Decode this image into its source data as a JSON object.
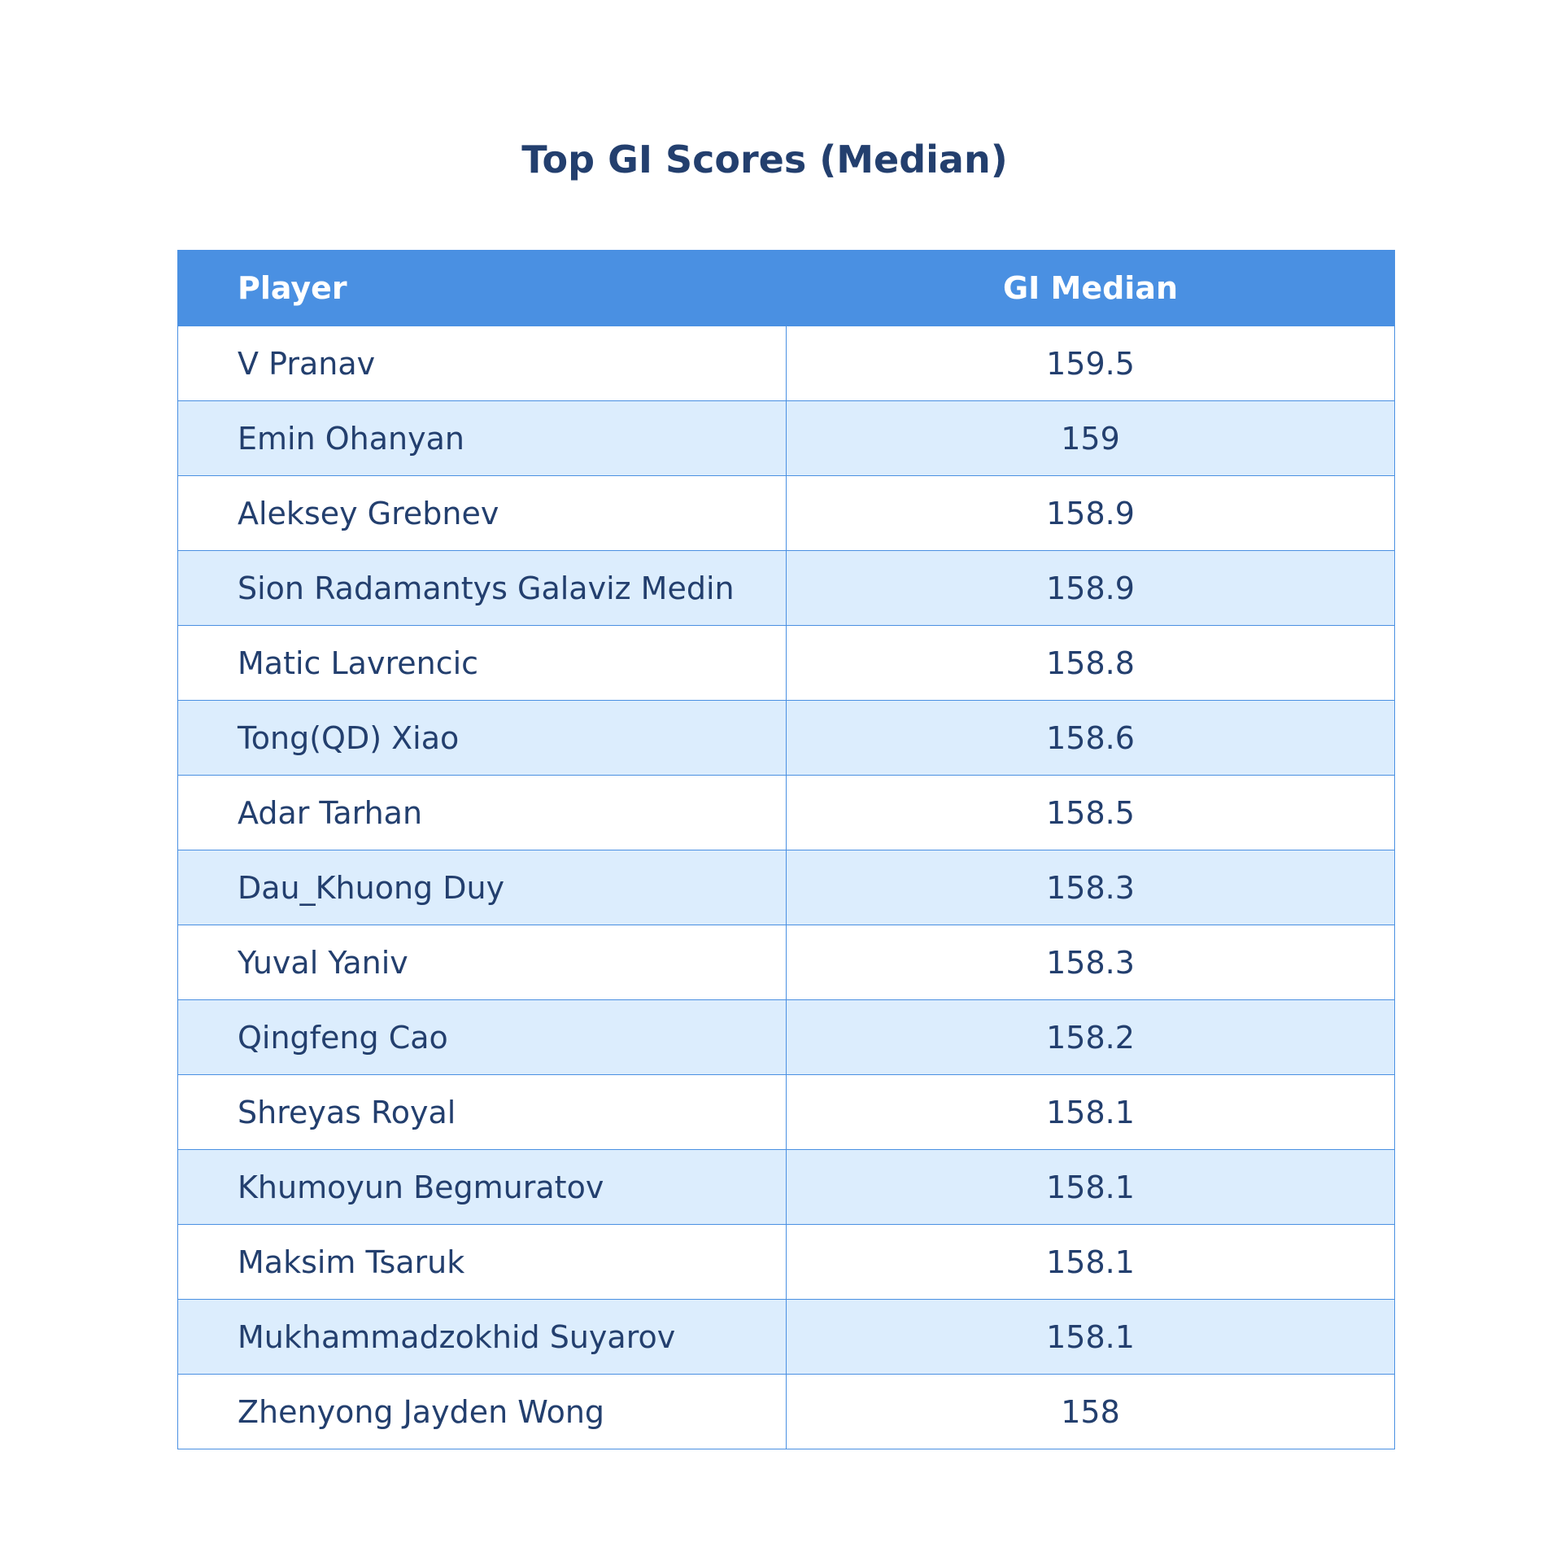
{
  "chart_data": {
    "type": "table",
    "title": "Top GI Scores (Median)",
    "columns": [
      "Player",
      "GI Median"
    ],
    "rows": [
      {
        "player": "V Pranav",
        "gi_median": "159.5"
      },
      {
        "player": "Emin Ohanyan",
        "gi_median": "159"
      },
      {
        "player": "Aleksey Grebnev",
        "gi_median": "158.9"
      },
      {
        "player": "Sion Radamantys Galaviz Medin",
        "gi_median": "158.9"
      },
      {
        "player": "Matic Lavrencic",
        "gi_median": "158.8"
      },
      {
        "player": "Tong(QD) Xiao",
        "gi_median": "158.6"
      },
      {
        "player": "Adar Tarhan",
        "gi_median": "158.5"
      },
      {
        "player": "Dau_Khuong Duy",
        "gi_median": "158.3"
      },
      {
        "player": "Yuval Yaniv",
        "gi_median": "158.3"
      },
      {
        "player": "Qingfeng Cao",
        "gi_median": "158.2"
      },
      {
        "player": "Shreyas Royal",
        "gi_median": "158.1"
      },
      {
        "player": "Khumoyun Begmuratov",
        "gi_median": "158.1"
      },
      {
        "player": "Maksim Tsaruk",
        "gi_median": "158.1"
      },
      {
        "player": "Mukhammadzokhid Suyarov",
        "gi_median": "158.1"
      },
      {
        "player": "Zhenyong Jayden Wong",
        "gi_median": "158"
      }
    ],
    "colors": {
      "header_background": "#4a90e2",
      "header_text": "#ffffff",
      "body_text": "#233f6e",
      "stripe_background": "#dcedfd",
      "border": "#4a90e2"
    }
  }
}
